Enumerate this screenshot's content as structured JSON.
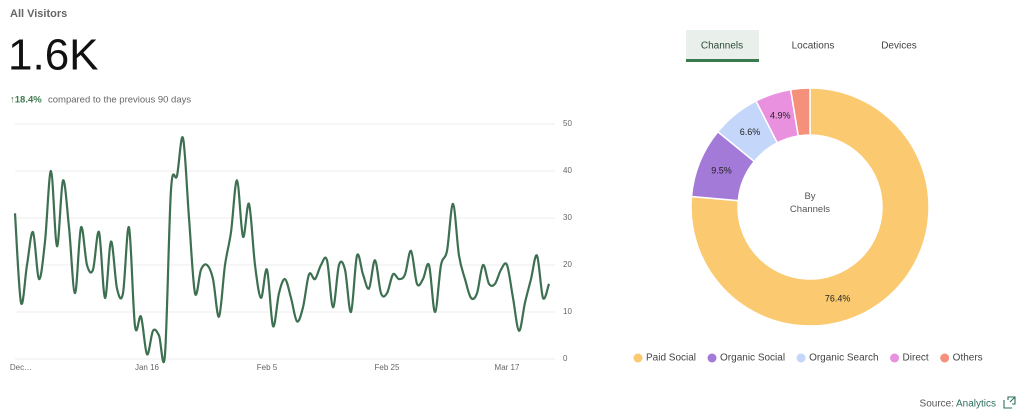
{
  "header": {
    "title": "All Visitors",
    "total": "1.6K",
    "change": "↑18.4%",
    "change_note": "compared to the previous 90 days"
  },
  "tabs": [
    "Channels",
    "Locations",
    "Devices"
  ],
  "footer": {
    "source_label": "Source:",
    "source_link": "Analytics"
  },
  "chart_data": [
    {
      "type": "line",
      "categories": [
        "Dec…",
        null,
        null,
        null,
        null,
        null,
        null,
        null,
        null,
        null,
        null,
        null,
        null,
        null,
        null,
        null,
        null,
        null,
        null,
        null,
        null,
        "Jan 16",
        null,
        null,
        null,
        null,
        null,
        null,
        null,
        null,
        null,
        null,
        null,
        null,
        null,
        null,
        null,
        null,
        null,
        null,
        null,
        "Feb 5",
        null,
        null,
        null,
        null,
        null,
        null,
        null,
        null,
        null,
        null,
        null,
        null,
        null,
        null,
        null,
        null,
        null,
        null,
        null,
        "Feb 25",
        null,
        null,
        null,
        null,
        null,
        null,
        null,
        null,
        null,
        null,
        null,
        null,
        null,
        null,
        null,
        null,
        null,
        null,
        null,
        "Mar 17",
        null,
        null,
        null,
        null,
        null,
        null,
        null,
        null
      ],
      "series": [
        {
          "name": "All Visitors",
          "color": "#3d7050",
          "values": [
            31,
            12,
            20,
            27,
            17,
            25,
            40,
            24,
            38,
            28,
            14,
            28,
            20,
            19,
            27,
            13,
            25,
            15,
            14,
            28,
            7,
            9,
            1,
            6,
            5,
            1,
            36,
            39,
            47,
            30,
            14,
            19,
            20,
            17,
            9,
            20,
            27,
            38,
            26,
            33,
            20,
            13,
            19,
            7,
            14,
            17,
            13,
            8,
            11,
            18,
            17,
            20,
            21,
            11,
            20,
            19,
            10,
            22,
            18,
            15,
            21,
            14,
            14,
            18,
            17,
            18,
            23,
            16,
            17,
            20,
            10,
            20,
            23,
            33,
            22,
            17,
            13,
            14,
            20,
            16,
            16,
            19,
            20,
            13,
            6,
            12,
            17,
            22,
            13,
            16
          ]
        }
      ],
      "ylim": [
        0,
        50
      ],
      "yticks": [
        0,
        10,
        20,
        30,
        40,
        50
      ],
      "grid": true
    },
    {
      "type": "donut",
      "center_label": "By Channels",
      "categories": [
        "Paid Social",
        "Organic Social",
        "Organic Search",
        "Direct",
        "Others"
      ],
      "values": [
        76.4,
        9.5,
        6.6,
        4.9,
        2.6
      ],
      "value_labels": [
        "76.4%",
        "9.5%",
        "6.6%",
        "4.9%",
        null
      ],
      "colors": [
        "#fbc96f",
        "#a47ad8",
        "#c4d7fa",
        "#e991de",
        "#f5907a"
      ],
      "legend": "bottom"
    }
  ]
}
